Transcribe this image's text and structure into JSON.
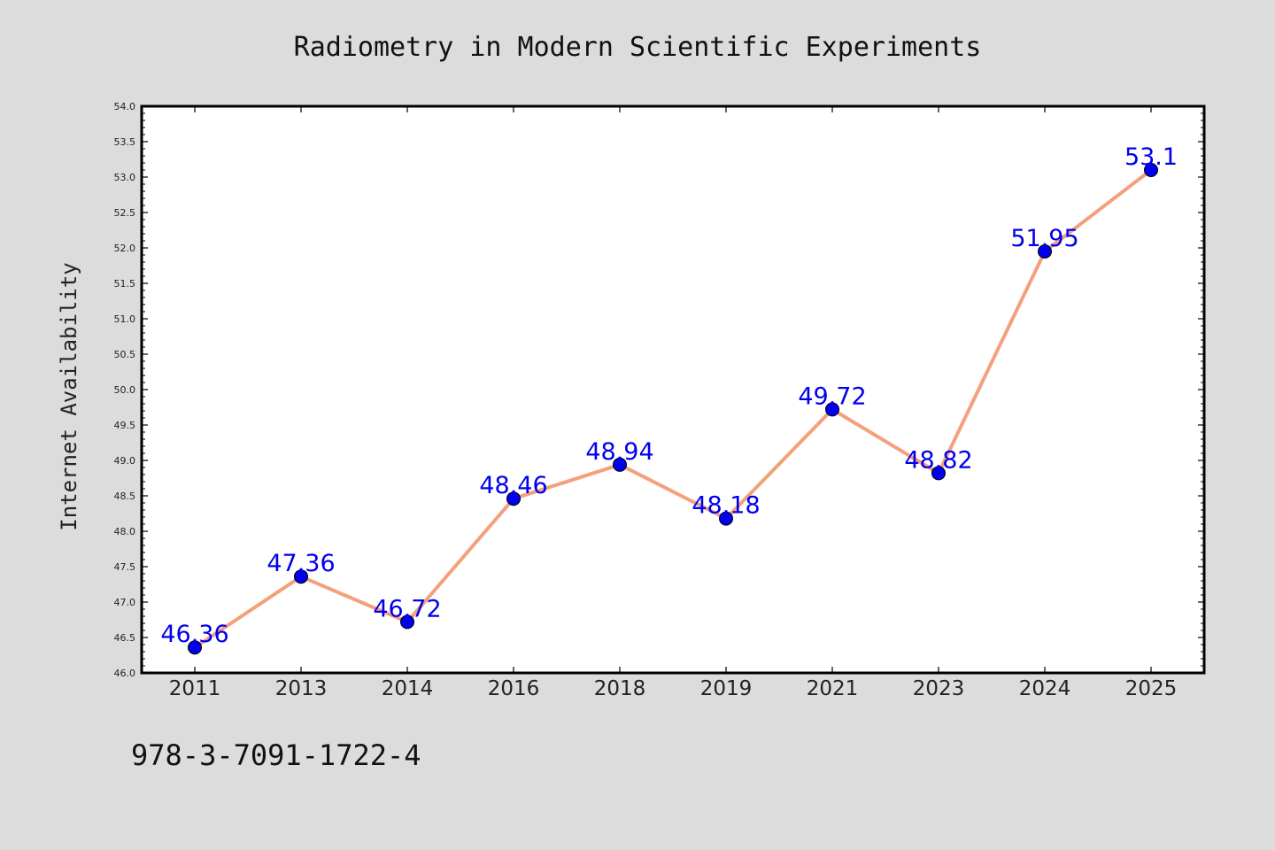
{
  "chart_data": {
    "type": "line",
    "title": "Radiometry in Modern Scientific Experiments",
    "xlabel": "",
    "ylabel": "Internet Availability",
    "categories": [
      "2011",
      "2013",
      "2014",
      "2016",
      "2018",
      "2019",
      "2021",
      "2023",
      "2024",
      "2025"
    ],
    "series": [
      {
        "values": [
          46.36,
          47.36,
          46.72,
          48.46,
          48.94,
          48.18,
          49.72,
          48.82,
          51.95,
          53.1
        ]
      }
    ],
    "data_labels": [
      "46.36",
      "47.36",
      "46.72",
      "48.46",
      "48.94",
      "48.18",
      "49.72",
      "48.82",
      "51.95",
      "53.1"
    ],
    "ylim": [
      46.0,
      54.0
    ],
    "yticks": [
      "46.0",
      "46.5",
      "47.0",
      "47.5",
      "48.0",
      "48.5",
      "49.0",
      "49.5",
      "50.0",
      "50.5",
      "51.0",
      "51.5",
      "52.0",
      "52.5",
      "53.0",
      "53.5",
      "54.0"
    ],
    "grid": false,
    "legend": "none",
    "line_color": "#f4a07c",
    "marker_color": "#0000ee",
    "label_color": "#0000ee",
    "background_color": "#dcdcdc",
    "plot_background_color": "#ffffff"
  },
  "footer": {
    "isbn": "978-3-7091-1722-4"
  }
}
